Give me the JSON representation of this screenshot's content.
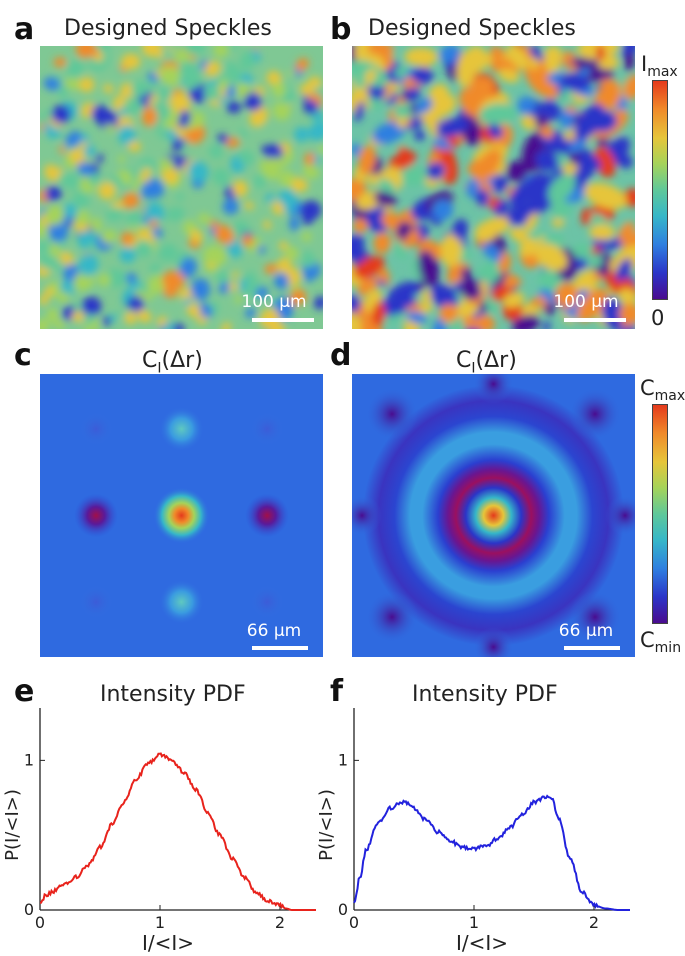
{
  "panels": {
    "a": {
      "letter": "a",
      "title": "Designed Speckles",
      "scale_bar": "100 μm"
    },
    "b": {
      "letter": "b",
      "title": "Designed Speckles",
      "scale_bar": "100 μm"
    },
    "c": {
      "letter": "c",
      "title_main": "C",
      "title_sub": "I",
      "title_tail": "(Δr)",
      "scale_bar": "66 μm"
    },
    "d": {
      "letter": "d",
      "title_main": "C",
      "title_sub": "I",
      "title_tail": "(Δr)",
      "scale_bar": "66 μm"
    },
    "e": {
      "letter": "e",
      "title": "Intensity PDF"
    },
    "f": {
      "letter": "f",
      "title": "Intensity PDF"
    }
  },
  "colorbar_top": {
    "max_main": "I",
    "max_sub": "max",
    "min_label": "0"
  },
  "colorbar_bottom": {
    "max_main": "C",
    "max_sub": "max",
    "min_main": "C",
    "min_sub": "min"
  },
  "colors": {
    "jet": [
      "#4a0c8f",
      "#2b35c8",
      "#2f7fe0",
      "#36b7c8",
      "#5fc89a",
      "#a5d35a",
      "#e6c53a",
      "#f08a2a",
      "#e43a1c"
    ],
    "curve_e": "#e8231c",
    "curve_f": "#2222dd"
  },
  "chart_data": [
    {
      "type": "line",
      "panel": "e",
      "title": "Intensity PDF",
      "xlabel": "I/<I>",
      "ylabel": "P(I/<I>)",
      "xlim": [
        0,
        2.3
      ],
      "ylim": [
        0,
        1.35
      ],
      "xticks": [
        "0",
        "1",
        "2"
      ],
      "yticks": [
        "0",
        "1"
      ],
      "x": [
        0,
        0.05,
        0.1,
        0.2,
        0.3,
        0.4,
        0.5,
        0.6,
        0.7,
        0.8,
        0.9,
        1.0,
        1.1,
        1.2,
        1.3,
        1.4,
        1.5,
        1.6,
        1.7,
        1.8,
        1.9,
        2.0,
        2.05,
        2.1,
        2.2,
        2.3
      ],
      "y": [
        0.05,
        0.1,
        0.12,
        0.17,
        0.22,
        0.3,
        0.42,
        0.57,
        0.72,
        0.87,
        0.98,
        1.04,
        1.0,
        0.92,
        0.8,
        0.65,
        0.5,
        0.35,
        0.22,
        0.12,
        0.06,
        0.03,
        0.01,
        0.0,
        0.0,
        0.0
      ]
    },
    {
      "type": "line",
      "panel": "f",
      "title": "Intensity PDF",
      "xlabel": "I/<I>",
      "ylabel": "P(I/<I>)",
      "xlim": [
        0,
        2.3
      ],
      "ylim": [
        0,
        1.35
      ],
      "xticks": [
        "0",
        "1",
        "2"
      ],
      "yticks": [
        "0",
        "1"
      ],
      "x": [
        0,
        0.05,
        0.1,
        0.2,
        0.3,
        0.4,
        0.45,
        0.5,
        0.6,
        0.7,
        0.8,
        0.9,
        1.0,
        1.1,
        1.2,
        1.3,
        1.4,
        1.5,
        1.6,
        1.65,
        1.7,
        1.8,
        1.9,
        2.0,
        2.1,
        2.2,
        2.3
      ],
      "y": [
        0.05,
        0.22,
        0.4,
        0.58,
        0.68,
        0.72,
        0.72,
        0.68,
        0.6,
        0.52,
        0.46,
        0.42,
        0.41,
        0.43,
        0.48,
        0.55,
        0.64,
        0.72,
        0.76,
        0.74,
        0.62,
        0.35,
        0.12,
        0.03,
        0.01,
        0.0,
        0.0
      ]
    }
  ]
}
